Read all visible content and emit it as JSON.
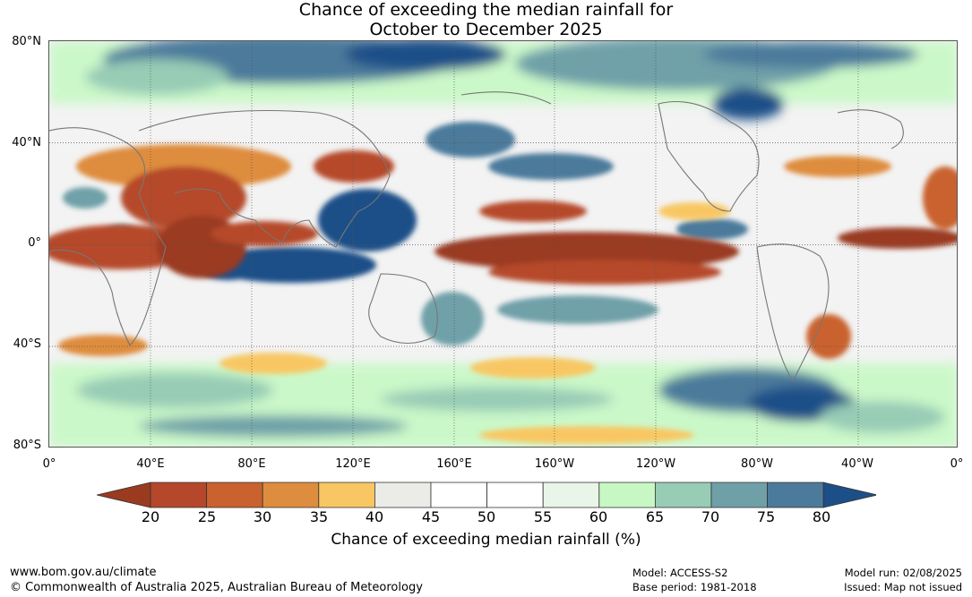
{
  "title": {
    "line1": "Chance of exceeding the median rainfall for",
    "line2": "October to December 2025"
  },
  "map": {
    "lat_labels": [
      "80°N",
      "40°N",
      "0°",
      "40°S",
      "80°S"
    ],
    "lon_labels": [
      "0°",
      "40°E",
      "80°E",
      "120°E",
      "160°E",
      "160°W",
      "120°W",
      "80°W",
      "40°W",
      "0°"
    ],
    "colors": {
      "ocean_neutral": "#f3f3f3",
      "coastline": "#777777",
      "grid": "#555555"
    }
  },
  "colorbar": {
    "ticks": [
      "20",
      "25",
      "30",
      "35",
      "40",
      "45",
      "50",
      "55",
      "60",
      "65",
      "70",
      "75",
      "80"
    ],
    "colors": [
      "#9a3b20",
      "#b5482a",
      "#c9622f",
      "#de8c3e",
      "#f8c763",
      "#ebebe7",
      "#ffffff",
      "#ffffff",
      "#e8f5e8",
      "#c7f8c4",
      "#98ccb5",
      "#6fa0a8",
      "#4c7a9b",
      "#1c4f88"
    ],
    "label": "Chance of exceeding median rainfall (%)"
  },
  "footer": {
    "url": "www.bom.gov.au/climate",
    "copyright": "© Commonwealth of Australia 2025, Australian Bureau of Meteorology",
    "model": "Model: ACCESS-S2",
    "base_period": "Base period: 1981-2018",
    "model_run": "Model run: 02/08/2025",
    "issued": "Issued: Map not issued"
  }
}
